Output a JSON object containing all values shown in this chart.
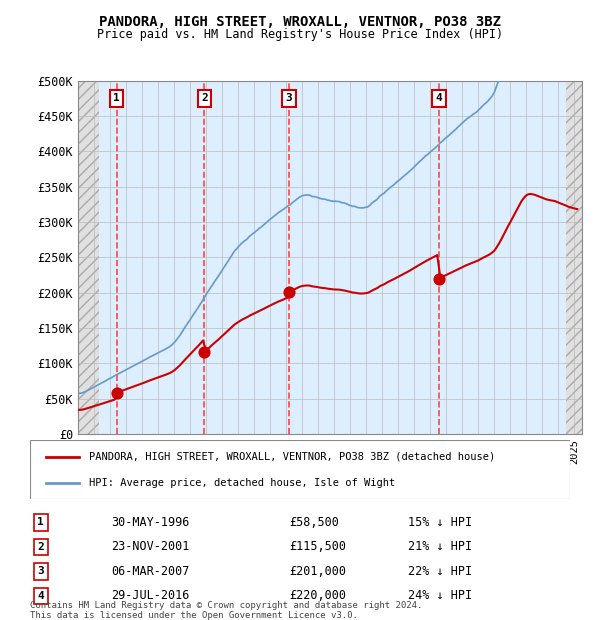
{
  "title": "PANDORA, HIGH STREET, WROXALL, VENTNOR, PO38 3BZ",
  "subtitle": "Price paid vs. HM Land Registry's House Price Index (HPI)",
  "ylabel_ticks": [
    "£0",
    "£50K",
    "£100K",
    "£150K",
    "£200K",
    "£250K",
    "£300K",
    "£350K",
    "£400K",
    "£450K",
    "£500K"
  ],
  "ytick_values": [
    0,
    50000,
    100000,
    150000,
    200000,
    250000,
    300000,
    350000,
    400000,
    450000,
    500000
  ],
  "xlim": [
    1994.0,
    2025.5
  ],
  "ylim": [
    0,
    500000
  ],
  "transactions": [
    {
      "num": 1,
      "date": "30-MAY-1996",
      "year": 1996.41,
      "price": 58500,
      "pct": "15%",
      "dir": "↓"
    },
    {
      "num": 2,
      "date": "23-NOV-2001",
      "year": 2001.9,
      "price": 115500,
      "pct": "21%",
      "dir": "↓"
    },
    {
      "num": 3,
      "date": "06-MAR-2007",
      "year": 2007.18,
      "price": 201000,
      "pct": "22%",
      "dir": "↓"
    },
    {
      "num": 4,
      "date": "29-JUL-2016",
      "year": 2016.57,
      "price": 220000,
      "pct": "24%",
      "dir": "↓"
    }
  ],
  "legend_line1": "PANDORA, HIGH STREET, WROXALL, VENTNOR, PO38 3BZ (detached house)",
  "legend_line2": "HPI: Average price, detached house, Isle of Wight",
  "footnote": "Contains HM Land Registry data © Crown copyright and database right 2024.\nThis data is licensed under the Open Government Licence v3.0.",
  "line_color_red": "#cc0000",
  "line_color_blue": "#6699cc",
  "hatch_color": "#cccccc",
  "grid_color": "#aaaaaa",
  "bg_plot": "#ddeeff",
  "bg_hatch": "#e8e8e8",
  "transaction_box_color": "#cc0000",
  "dashed_line_color": "#ff4444"
}
